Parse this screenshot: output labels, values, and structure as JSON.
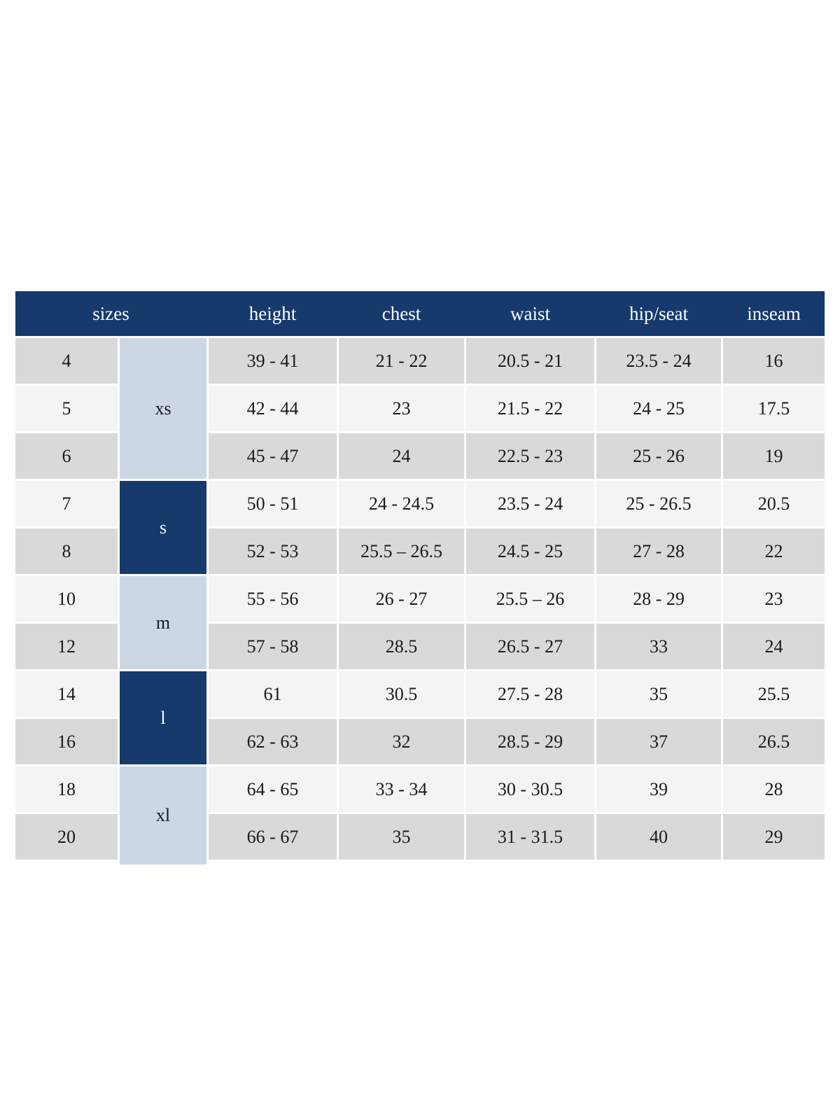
{
  "table": {
    "headers": [
      "sizes",
      "height",
      "chest",
      "waist",
      "hip/seat",
      "inseam"
    ],
    "size_groups": [
      {
        "label": "xs",
        "style": "light",
        "row_span": 3
      },
      {
        "label": "s",
        "style": "dark",
        "row_span": 2
      },
      {
        "label": "m",
        "style": "light",
        "row_span": 2
      },
      {
        "label": "l",
        "style": "dark",
        "row_span": 2
      },
      {
        "label": "xl",
        "style": "light",
        "row_span": 2
      }
    ],
    "rows": [
      {
        "size": "4",
        "height": "39 - 41",
        "chest": "21 - 22",
        "waist": "20.5 - 21",
        "hip_seat": "23.5 - 24",
        "inseam": "16"
      },
      {
        "size": "5",
        "height": "42 - 44",
        "chest": "23",
        "waist": "21.5 - 22",
        "hip_seat": "24 - 25",
        "inseam": "17.5"
      },
      {
        "size": "6",
        "height": "45 - 47",
        "chest": "24",
        "waist": "22.5 - 23",
        "hip_seat": "25 - 26",
        "inseam": "19"
      },
      {
        "size": "7",
        "height": "50 - 51",
        "chest": "24 - 24.5",
        "waist": "23.5 - 24",
        "hip_seat": "25 - 26.5",
        "inseam": "20.5"
      },
      {
        "size": "8",
        "height": "52 - 53",
        "chest": "25.5 – 26.5",
        "waist": "24.5 - 25",
        "hip_seat": "27 - 28",
        "inseam": "22"
      },
      {
        "size": "10",
        "height": "55 - 56",
        "chest": "26 - 27",
        "waist": "25.5 – 26",
        "hip_seat": "28 - 29",
        "inseam": "23"
      },
      {
        "size": "12",
        "height": "57 - 58",
        "chest": "28.5",
        "waist": "26.5 - 27",
        "hip_seat": "33",
        "inseam": "24"
      },
      {
        "size": "14",
        "height": "61",
        "chest": "30.5",
        "waist": "27.5 - 28",
        "hip_seat": "35",
        "inseam": "25.5"
      },
      {
        "size": "16",
        "height": "62 - 63",
        "chest": "32",
        "waist": "28.5 - 29",
        "hip_seat": "37",
        "inseam": "26.5"
      },
      {
        "size": "18",
        "height": "64 - 65",
        "chest": "33 - 34",
        "waist": "30 - 30.5",
        "hip_seat": "39",
        "inseam": "28"
      },
      {
        "size": "20",
        "height": "66 - 67",
        "chest": "35",
        "waist": "31 - 31.5",
        "hip_seat": "40",
        "inseam": "29"
      }
    ]
  },
  "colors": {
    "header_navy": "#173a6d",
    "group_light_blue": "#ccd7e6",
    "row_gray": "#d9d9d9",
    "row_light": "#f4f4f4",
    "gutter_white": "#ffffff",
    "text_dark": "#1a1a1a",
    "text_white": "#ffffff"
  }
}
